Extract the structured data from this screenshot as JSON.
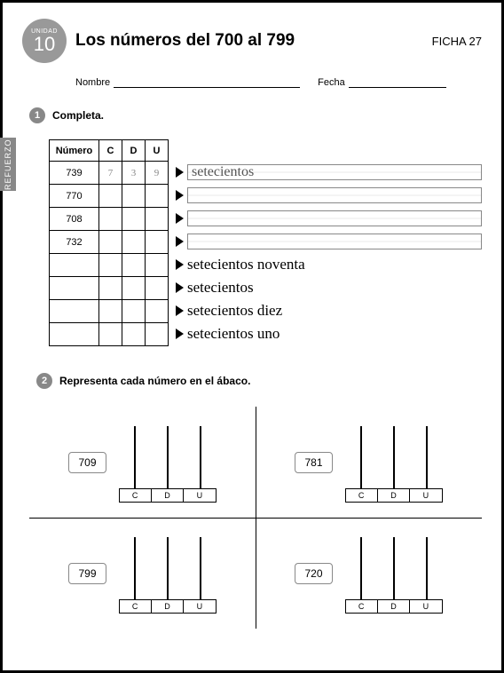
{
  "unit": {
    "label": "UNIDAD",
    "number": "10"
  },
  "title": "Los números del 700 al 799",
  "ficha": "FICHA 27",
  "name_label": "Nombre",
  "date_label": "Fecha",
  "side_tab": "REFUERZO",
  "ex1": {
    "num": "1",
    "instruction": "Completa.",
    "headers": {
      "numero": "Número",
      "c": "C",
      "d": "D",
      "u": "U"
    },
    "rows": [
      {
        "num": "739",
        "c": "7",
        "d": "3",
        "u": "9",
        "word": "setecientos",
        "boxed": true
      },
      {
        "num": "770",
        "c": "",
        "d": "",
        "u": "",
        "word": "",
        "boxed": true
      },
      {
        "num": "708",
        "c": "",
        "d": "",
        "u": "",
        "word": "",
        "boxed": true
      },
      {
        "num": "732",
        "c": "",
        "d": "",
        "u": "",
        "word": "",
        "boxed": true
      },
      {
        "num": "",
        "c": "",
        "d": "",
        "u": "",
        "word": "setecientos noventa",
        "boxed": false
      },
      {
        "num": "",
        "c": "",
        "d": "",
        "u": "",
        "word": "setecientos",
        "boxed": false
      },
      {
        "num": "",
        "c": "",
        "d": "",
        "u": "",
        "word": "setecientos diez",
        "boxed": false
      },
      {
        "num": "",
        "c": "",
        "d": "",
        "u": "",
        "word": "setecientos uno",
        "boxed": false
      }
    ]
  },
  "ex2": {
    "num": "2",
    "instruction": "Representa cada número en el ábaco.",
    "base_labels": [
      "C",
      "D",
      "U"
    ],
    "items": [
      {
        "num": "709"
      },
      {
        "num": "781"
      },
      {
        "num": "799"
      },
      {
        "num": "720"
      }
    ]
  }
}
